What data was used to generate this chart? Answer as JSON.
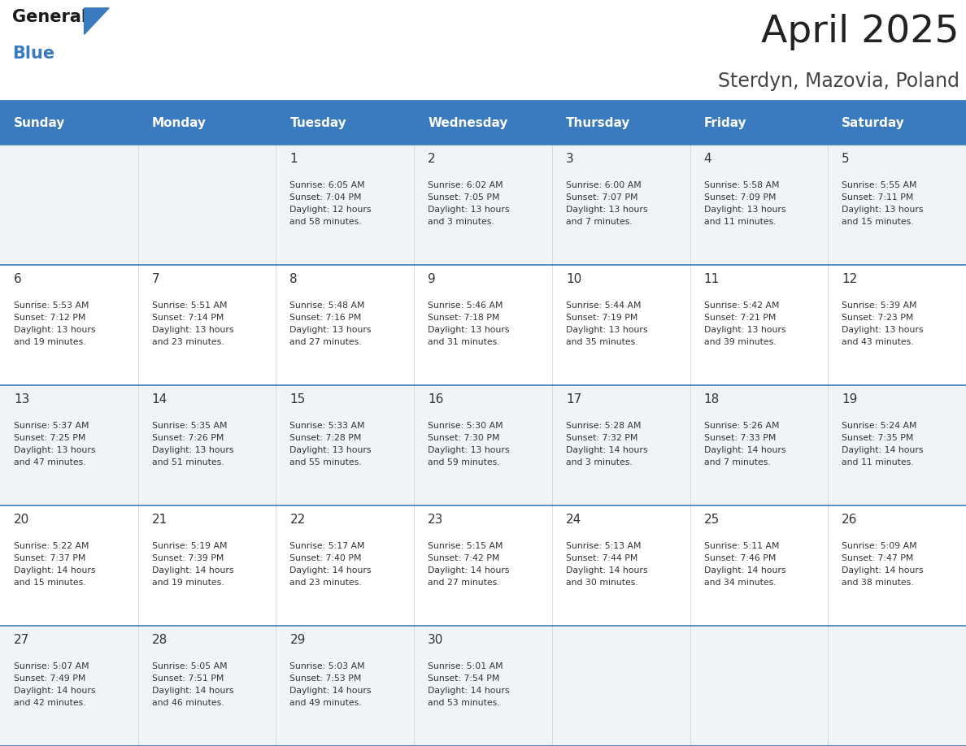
{
  "title": "April 2025",
  "subtitle": "Sterdyn, Mazovia, Poland",
  "header_color": "#3a7abf",
  "header_text_color": "#ffffff",
  "weekdays": [
    "Sunday",
    "Monday",
    "Tuesday",
    "Wednesday",
    "Thursday",
    "Friday",
    "Saturday"
  ],
  "background_color": "#ffffff",
  "cell_border_color": "#3a7abf",
  "title_color": "#222222",
  "subtitle_color": "#444444",
  "row_colors": [
    "#f0f4f8",
    "#ffffff",
    "#f0f4f8",
    "#ffffff",
    "#f0f4f8"
  ],
  "days": [
    {
      "day": null,
      "col": 0,
      "row": 0,
      "info": null
    },
    {
      "day": null,
      "col": 1,
      "row": 0,
      "info": null
    },
    {
      "day": 1,
      "col": 2,
      "row": 0,
      "info": "Sunrise: 6:05 AM\nSunset: 7:04 PM\nDaylight: 12 hours\nand 58 minutes."
    },
    {
      "day": 2,
      "col": 3,
      "row": 0,
      "info": "Sunrise: 6:02 AM\nSunset: 7:05 PM\nDaylight: 13 hours\nand 3 minutes."
    },
    {
      "day": 3,
      "col": 4,
      "row": 0,
      "info": "Sunrise: 6:00 AM\nSunset: 7:07 PM\nDaylight: 13 hours\nand 7 minutes."
    },
    {
      "day": 4,
      "col": 5,
      "row": 0,
      "info": "Sunrise: 5:58 AM\nSunset: 7:09 PM\nDaylight: 13 hours\nand 11 minutes."
    },
    {
      "day": 5,
      "col": 6,
      "row": 0,
      "info": "Sunrise: 5:55 AM\nSunset: 7:11 PM\nDaylight: 13 hours\nand 15 minutes."
    },
    {
      "day": 6,
      "col": 0,
      "row": 1,
      "info": "Sunrise: 5:53 AM\nSunset: 7:12 PM\nDaylight: 13 hours\nand 19 minutes."
    },
    {
      "day": 7,
      "col": 1,
      "row": 1,
      "info": "Sunrise: 5:51 AM\nSunset: 7:14 PM\nDaylight: 13 hours\nand 23 minutes."
    },
    {
      "day": 8,
      "col": 2,
      "row": 1,
      "info": "Sunrise: 5:48 AM\nSunset: 7:16 PM\nDaylight: 13 hours\nand 27 minutes."
    },
    {
      "day": 9,
      "col": 3,
      "row": 1,
      "info": "Sunrise: 5:46 AM\nSunset: 7:18 PM\nDaylight: 13 hours\nand 31 minutes."
    },
    {
      "day": 10,
      "col": 4,
      "row": 1,
      "info": "Sunrise: 5:44 AM\nSunset: 7:19 PM\nDaylight: 13 hours\nand 35 minutes."
    },
    {
      "day": 11,
      "col": 5,
      "row": 1,
      "info": "Sunrise: 5:42 AM\nSunset: 7:21 PM\nDaylight: 13 hours\nand 39 minutes."
    },
    {
      "day": 12,
      "col": 6,
      "row": 1,
      "info": "Sunrise: 5:39 AM\nSunset: 7:23 PM\nDaylight: 13 hours\nand 43 minutes."
    },
    {
      "day": 13,
      "col": 0,
      "row": 2,
      "info": "Sunrise: 5:37 AM\nSunset: 7:25 PM\nDaylight: 13 hours\nand 47 minutes."
    },
    {
      "day": 14,
      "col": 1,
      "row": 2,
      "info": "Sunrise: 5:35 AM\nSunset: 7:26 PM\nDaylight: 13 hours\nand 51 minutes."
    },
    {
      "day": 15,
      "col": 2,
      "row": 2,
      "info": "Sunrise: 5:33 AM\nSunset: 7:28 PM\nDaylight: 13 hours\nand 55 minutes."
    },
    {
      "day": 16,
      "col": 3,
      "row": 2,
      "info": "Sunrise: 5:30 AM\nSunset: 7:30 PM\nDaylight: 13 hours\nand 59 minutes."
    },
    {
      "day": 17,
      "col": 4,
      "row": 2,
      "info": "Sunrise: 5:28 AM\nSunset: 7:32 PM\nDaylight: 14 hours\nand 3 minutes."
    },
    {
      "day": 18,
      "col": 5,
      "row": 2,
      "info": "Sunrise: 5:26 AM\nSunset: 7:33 PM\nDaylight: 14 hours\nand 7 minutes."
    },
    {
      "day": 19,
      "col": 6,
      "row": 2,
      "info": "Sunrise: 5:24 AM\nSunset: 7:35 PM\nDaylight: 14 hours\nand 11 minutes."
    },
    {
      "day": 20,
      "col": 0,
      "row": 3,
      "info": "Sunrise: 5:22 AM\nSunset: 7:37 PM\nDaylight: 14 hours\nand 15 minutes."
    },
    {
      "day": 21,
      "col": 1,
      "row": 3,
      "info": "Sunrise: 5:19 AM\nSunset: 7:39 PM\nDaylight: 14 hours\nand 19 minutes."
    },
    {
      "day": 22,
      "col": 2,
      "row": 3,
      "info": "Sunrise: 5:17 AM\nSunset: 7:40 PM\nDaylight: 14 hours\nand 23 minutes."
    },
    {
      "day": 23,
      "col": 3,
      "row": 3,
      "info": "Sunrise: 5:15 AM\nSunset: 7:42 PM\nDaylight: 14 hours\nand 27 minutes."
    },
    {
      "day": 24,
      "col": 4,
      "row": 3,
      "info": "Sunrise: 5:13 AM\nSunset: 7:44 PM\nDaylight: 14 hours\nand 30 minutes."
    },
    {
      "day": 25,
      "col": 5,
      "row": 3,
      "info": "Sunrise: 5:11 AM\nSunset: 7:46 PM\nDaylight: 14 hours\nand 34 minutes."
    },
    {
      "day": 26,
      "col": 6,
      "row": 3,
      "info": "Sunrise: 5:09 AM\nSunset: 7:47 PM\nDaylight: 14 hours\nand 38 minutes."
    },
    {
      "day": 27,
      "col": 0,
      "row": 4,
      "info": "Sunrise: 5:07 AM\nSunset: 7:49 PM\nDaylight: 14 hours\nand 42 minutes."
    },
    {
      "day": 28,
      "col": 1,
      "row": 4,
      "info": "Sunrise: 5:05 AM\nSunset: 7:51 PM\nDaylight: 14 hours\nand 46 minutes."
    },
    {
      "day": 29,
      "col": 2,
      "row": 4,
      "info": "Sunrise: 5:03 AM\nSunset: 7:53 PM\nDaylight: 14 hours\nand 49 minutes."
    },
    {
      "day": 30,
      "col": 3,
      "row": 4,
      "info": "Sunrise: 5:01 AM\nSunset: 7:54 PM\nDaylight: 14 hours\nand 53 minutes."
    },
    {
      "day": null,
      "col": 4,
      "row": 4,
      "info": null
    },
    {
      "day": null,
      "col": 5,
      "row": 4,
      "info": null
    },
    {
      "day": null,
      "col": 6,
      "row": 4,
      "info": null
    }
  ]
}
